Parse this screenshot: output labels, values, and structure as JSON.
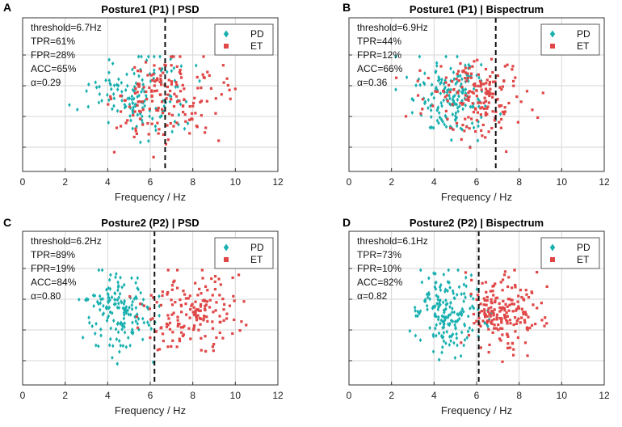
{
  "chart_data": [
    {
      "type": "scatter",
      "panel": "A",
      "title": "Posture1 (P1) | PSD",
      "xlabel": "Frequency / Hz",
      "xlim": [
        0,
        12
      ],
      "xticks": [
        0,
        2,
        4,
        6,
        8,
        10,
        12
      ],
      "threshold": 6.7,
      "annotations": [
        "threshold=6.7Hz",
        "TPR=61%",
        "FPR=28%",
        "ACC=65%",
        "α=0.29"
      ],
      "legend": [
        "PD",
        "ET"
      ],
      "series": [
        {
          "name": "PD",
          "color": "#1ab0b0",
          "marker": "diamond",
          "center": 5.4,
          "spread": 1.5,
          "count": 150
        },
        {
          "name": "ET",
          "color": "#e04646",
          "marker": "square",
          "center": 6.9,
          "spread": 1.8,
          "count": 170
        }
      ]
    },
    {
      "type": "scatter",
      "panel": "B",
      "title": "Posture1 (P1) | Bispectrum",
      "xlabel": "Frequency / Hz",
      "xlim": [
        0,
        12
      ],
      "xticks": [
        0,
        2,
        4,
        6,
        8,
        10,
        12
      ],
      "threshold": 6.9,
      "annotations": [
        "threshold=6.9Hz",
        "TPR=44%",
        "FPR=12%",
        "ACC=66%",
        "α=0.36"
      ],
      "legend": [
        "PD",
        "ET"
      ],
      "series": [
        {
          "name": "PD",
          "color": "#1ab0b0",
          "marker": "diamond",
          "center": 4.8,
          "spread": 1.1,
          "count": 170
        },
        {
          "name": "ET",
          "color": "#e04646",
          "marker": "square",
          "center": 5.9,
          "spread": 1.6,
          "count": 180
        }
      ]
    },
    {
      "type": "scatter",
      "panel": "C",
      "title": "Posture2 (P2) | PSD",
      "xlabel": "Frequency / Hz",
      "xlim": [
        0,
        12
      ],
      "xticks": [
        0,
        2,
        4,
        6,
        8,
        10,
        12
      ],
      "threshold": 6.2,
      "annotations": [
        "threshold=6.2Hz",
        "TPR=89%",
        "FPR=19%",
        "ACC=84%",
        "α=0.80"
      ],
      "legend": [
        "PD",
        "ET"
      ],
      "series": [
        {
          "name": "PD",
          "color": "#1ab0b0",
          "marker": "diamond",
          "center": 4.6,
          "spread": 1.1,
          "count": 170
        },
        {
          "name": "ET",
          "color": "#e04646",
          "marker": "square",
          "center": 8.0,
          "spread": 1.5,
          "count": 170
        }
      ]
    },
    {
      "type": "scatter",
      "panel": "D",
      "title": "Posture2 (P2) | Bispectrum",
      "xlabel": "Frequency / Hz",
      "xlim": [
        0,
        12
      ],
      "xticks": [
        0,
        2,
        4,
        6,
        8,
        10,
        12
      ],
      "threshold": 6.1,
      "annotations": [
        "threshold=6.1Hz",
        "TPR=73%",
        "FPR=10%",
        "ACC=82%",
        "α=0.82"
      ],
      "legend": [
        "PD",
        "ET"
      ],
      "series": [
        {
          "name": "PD",
          "color": "#1ab0b0",
          "marker": "diamond",
          "center": 4.6,
          "spread": 1.0,
          "count": 180
        },
        {
          "name": "ET",
          "color": "#e04646",
          "marker": "square",
          "center": 7.3,
          "spread": 1.1,
          "count": 190
        }
      ]
    }
  ]
}
